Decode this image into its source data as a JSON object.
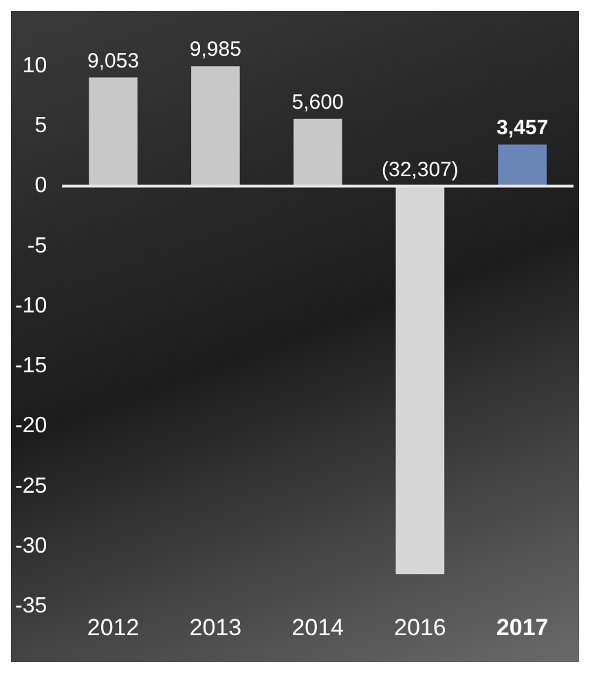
{
  "chart_data": {
    "type": "bar",
    "categories": [
      "2012",
      "2013",
      "2014",
      "2016",
      "2017"
    ],
    "values": [
      9.05,
      9.99,
      5.6,
      -32.31,
      3.46
    ],
    "colors": [
      "#c8c8c8",
      "#c8c8c8",
      "#c8c8c8",
      "#d6d6d6",
      "#6a85b8"
    ],
    "annotations": [
      {
        "text": "9,053",
        "x": "2012",
        "y": 9.05
      },
      {
        "text": "9,985",
        "x": "2013",
        "y": 9.99
      },
      {
        "text": "5,600",
        "x": "2014",
        "y": 5.6
      },
      {
        "text": "(32,307)",
        "x": "2016",
        "y": 0
      },
      {
        "text": "3,457",
        "x": "2017",
        "y": 3.46
      }
    ],
    "ylim": [
      -35,
      10
    ],
    "yticks": [
      -35,
      -30,
      -25,
      -20,
      -15,
      -10,
      -5,
      0,
      5,
      10
    ],
    "grid": false,
    "legend": false,
    "ref_lines": [
      {
        "axis": "y",
        "value": 0,
        "color": "#e8e8e8"
      }
    ]
  }
}
